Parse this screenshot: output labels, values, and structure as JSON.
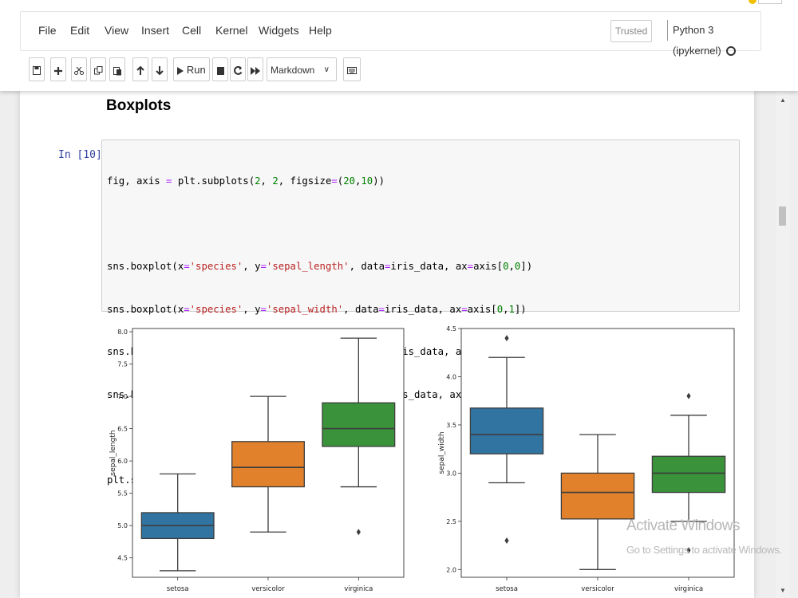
{
  "menu": {
    "items": [
      "File",
      "Edit",
      "View",
      "Insert",
      "Cell",
      "Kernel",
      "Widgets",
      "Help"
    ],
    "trusted": "Trusted",
    "kernel": "Python 3 (ipykernel)"
  },
  "toolbar": {
    "run_label": "Run",
    "cell_type": "Markdown"
  },
  "notebook": {
    "heading": "Boxplots",
    "prompt": "In [10]:"
  },
  "watermark": {
    "title": "Activate Windows",
    "subtitle": "Go to Settings to activate Windows."
  },
  "colors": {
    "setosa": "#3274a1",
    "versicolor": "#e1812c",
    "virginica": "#3a923a"
  },
  "chart_data": [
    {
      "type": "box",
      "xlabel": "",
      "ylabel": "sepal_length",
      "categories": [
        "setosa",
        "versicolor",
        "virginica"
      ],
      "ylim": [
        4.2,
        8.05
      ],
      "yticks": [
        "4.5",
        "5.0",
        "5.5",
        "6.0",
        "6.5",
        "7.0",
        "7.5",
        "8.0"
      ],
      "boxes": [
        {
          "min": 4.3,
          "q1": 4.8,
          "median": 5.0,
          "q3": 5.2,
          "max": 5.8,
          "outliers": []
        },
        {
          "min": 4.9,
          "q1": 5.6,
          "median": 5.9,
          "q3": 6.3,
          "max": 7.0,
          "outliers": []
        },
        {
          "min": 5.6,
          "q1": 6.225,
          "median": 6.5,
          "q3": 6.9,
          "max": 7.9,
          "outliers": [
            4.9
          ]
        }
      ]
    },
    {
      "type": "box",
      "xlabel": "",
      "ylabel": "sepal_width",
      "categories": [
        "setosa",
        "versicolor",
        "virginica"
      ],
      "ylim": [
        1.92,
        4.5
      ],
      "yticks": [
        "2.0",
        "2.5",
        "3.0",
        "3.5",
        "4.0",
        "4.5"
      ],
      "boxes": [
        {
          "min": 2.9,
          "q1": 3.2,
          "median": 3.4,
          "q3": 3.675,
          "max": 4.2,
          "outliers": [
            4.4,
            2.3
          ]
        },
        {
          "min": 2.0,
          "q1": 2.525,
          "median": 2.8,
          "q3": 3.0,
          "max": 3.4,
          "outliers": []
        },
        {
          "min": 2.5,
          "q1": 2.8,
          "median": 3.0,
          "q3": 3.175,
          "max": 3.6,
          "outliers": [
            3.8,
            2.2
          ]
        }
      ]
    }
  ]
}
